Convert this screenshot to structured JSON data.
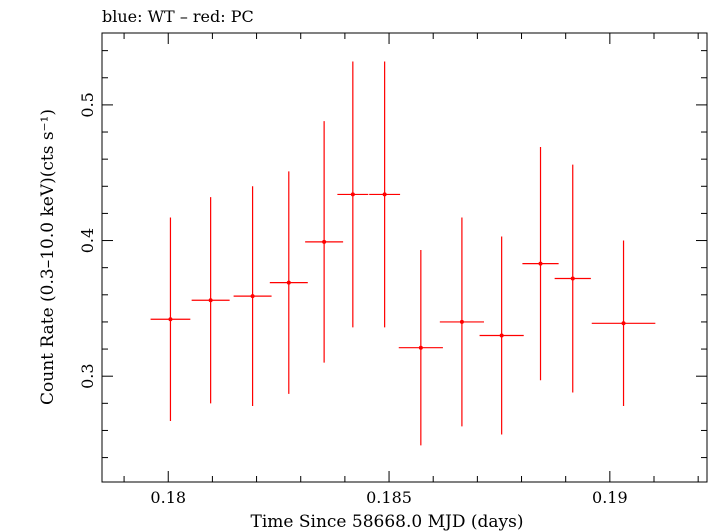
{
  "chart_data": {
    "type": "scatter",
    "title": "blue: WT – red: PC",
    "xlabel": "Time Since 58668.0 MJD (days)",
    "ylabel": "Count Rate (0.3–10.0 keV)(cts s⁻¹)",
    "xlim": [
      0.1785,
      0.1922
    ],
    "ylim": [
      0.222,
      0.553
    ],
    "xticks": [
      0.18,
      0.185,
      0.19
    ],
    "xtick_labels": [
      "0.18",
      "0.185",
      "0.19"
    ],
    "yticks": [
      0.3,
      0.4,
      0.5
    ],
    "ytick_labels": [
      "0.3",
      "0.4",
      "0.5"
    ],
    "grid": false,
    "series": [
      {
        "color": "#ff0000",
        "points": [
          {
            "x": 0.18005,
            "xerr": 0.00045,
            "y": 0.342,
            "yerr": 0.075
          },
          {
            "x": 0.18096,
            "xerr": 0.00043,
            "y": 0.356,
            "yerr": 0.076
          },
          {
            "x": 0.18191,
            "xerr": 0.00043,
            "y": 0.359,
            "yerr": 0.081
          },
          {
            "x": 0.18273,
            "xerr": 0.00043,
            "y": 0.369,
            "yerr": 0.082
          },
          {
            "x": 0.18353,
            "xerr": 0.00043,
            "y": 0.399,
            "yerr": 0.089
          },
          {
            "x": 0.18418,
            "xerr": 0.00035,
            "y": 0.434,
            "yerr": 0.098
          },
          {
            "x": 0.1849,
            "xerr": 0.00035,
            "y": 0.434,
            "yerr": 0.098
          },
          {
            "x": 0.18572,
            "xerr": 0.0005,
            "y": 0.321,
            "yerr": 0.072
          },
          {
            "x": 0.18665,
            "xerr": 0.0005,
            "y": 0.34,
            "yerr": 0.077
          },
          {
            "x": 0.18755,
            "xerr": 0.0005,
            "y": 0.33,
            "yerr": 0.073
          },
          {
            "x": 0.18843,
            "xerr": 0.00041,
            "y": 0.383,
            "yerr": 0.086
          },
          {
            "x": 0.18916,
            "xerr": 0.00041,
            "y": 0.372,
            "yerr": 0.084
          },
          {
            "x": 0.19031,
            "xerr": 0.00072,
            "y": 0.339,
            "yerr": 0.061
          }
        ]
      }
    ]
  }
}
